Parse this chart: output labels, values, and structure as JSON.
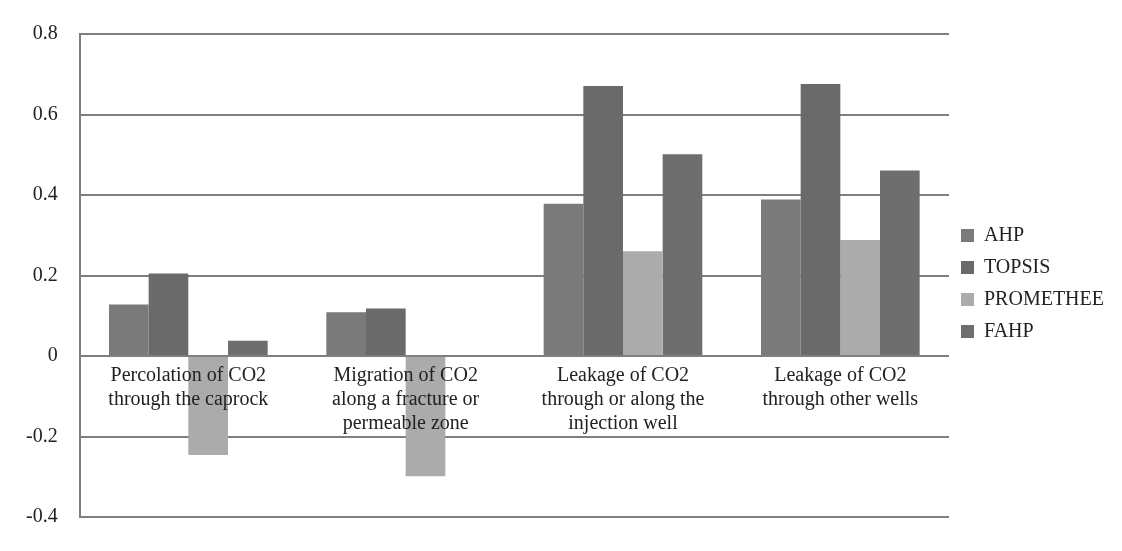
{
  "chart_data": {
    "type": "bar",
    "categories": [
      "Percolation of CO2 through the caprock",
      "Migration of CO2 along a fracture or permeable zone",
      "Leakage of CO2 through or along the injection well",
      "Leakage of CO2 through other wells"
    ],
    "series": [
      {
        "name": "AHP",
        "color": "#7a7a7a",
        "values": [
          0.128,
          0.109,
          0.378,
          0.389
        ]
      },
      {
        "name": "TOPSIS",
        "color": "#6a6a6a",
        "values": [
          0.205,
          0.118,
          0.671,
          0.676
        ]
      },
      {
        "name": "PROMETHEE",
        "color": "#ababab",
        "values": [
          -0.246,
          -0.299,
          0.26,
          0.288
        ]
      },
      {
        "name": "FAHP",
        "color": "#6e6e6e",
        "values": [
          0.038,
          0,
          0.501,
          0.461
        ]
      }
    ],
    "ylim": [
      -0.4,
      0.8
    ],
    "yticks": [
      -0.4,
      -0.2,
      0,
      0.2,
      0.4,
      0.6,
      0.8
    ],
    "grid": "y",
    "legend": "right"
  }
}
